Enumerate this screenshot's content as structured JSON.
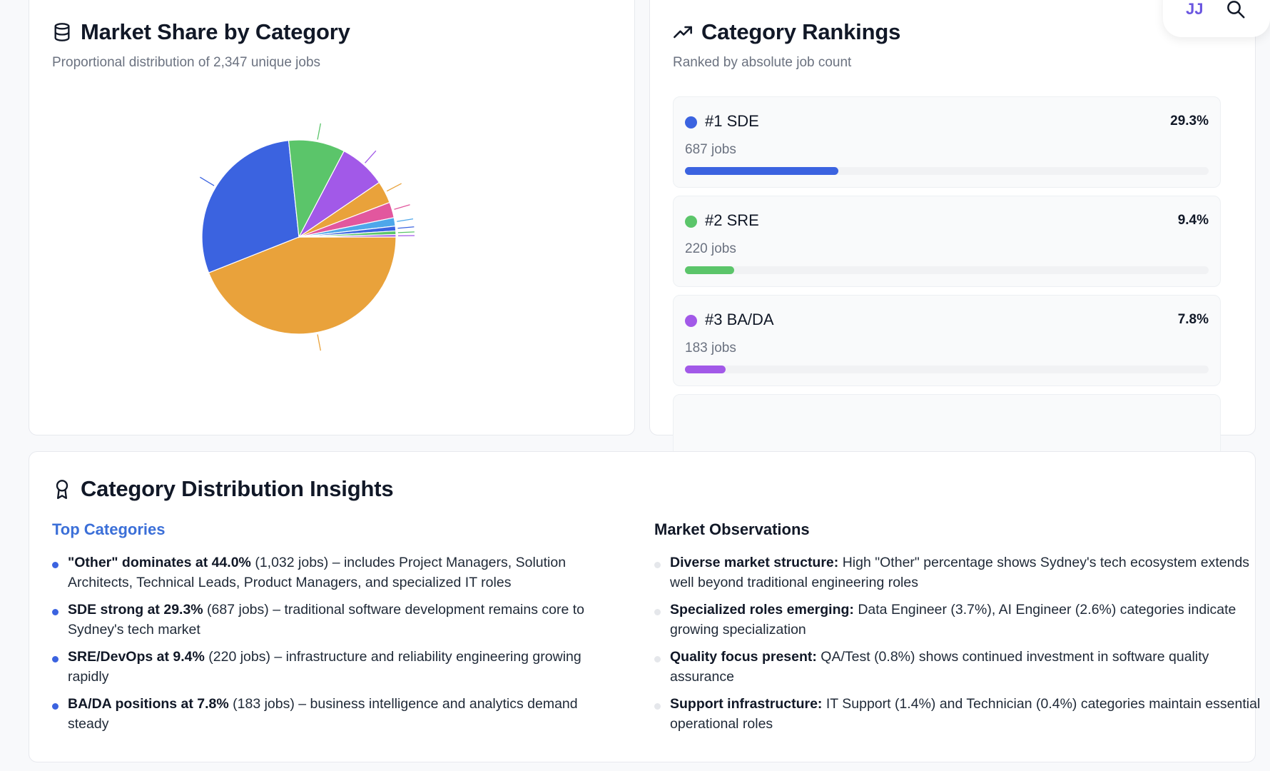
{
  "pie_card": {
    "title": "Market Share by Category",
    "subtitle": "Proportional distribution of 2,347 unique jobs"
  },
  "chart_data": {
    "type": "pie",
    "title": "",
    "slices": [
      {
        "value": 44.0,
        "color": "#e9a23b"
      },
      {
        "value": 29.3,
        "color": "#3b63e0"
      },
      {
        "value": 9.4,
        "color": "#5bc56a"
      },
      {
        "value": 7.8,
        "color": "#a259e8"
      },
      {
        "value": 3.7,
        "color": "#e9a23b"
      },
      {
        "value": 2.6,
        "color": "#e2579e"
      },
      {
        "value": 1.4,
        "color": "#4ea7ea"
      },
      {
        "value": 0.8,
        "color": "#3b63e0"
      },
      {
        "value": 0.6,
        "color": "#5bc56a"
      },
      {
        "value": 0.4,
        "color": "#a259e8"
      }
    ]
  },
  "rank_card": {
    "title": "Category Rankings",
    "subtitle": "Ranked by absolute job count",
    "items": [
      {
        "name": "#1 SDE",
        "pct": "29.3%",
        "jobs": "687 jobs",
        "fill": 29.3,
        "color": "#3b63e0"
      },
      {
        "name": "#2 SRE",
        "pct": "9.4%",
        "jobs": "220 jobs",
        "fill": 9.4,
        "color": "#5bc56a"
      },
      {
        "name": "#3 BA/DA",
        "pct": "7.8%",
        "jobs": "183 jobs",
        "fill": 7.8,
        "color": "#a259e8"
      }
    ]
  },
  "insights": {
    "title": "Category Distribution Insights",
    "left_title": "Top Categories",
    "left_bullet_color": "#3b63e0",
    "left": [
      {
        "bold": "\"Other\" dominates at 44.0%",
        "rest": " (1,032 jobs) – includes Project Managers, Solution Architects, Technical Leads, Product Managers, and specialized IT roles"
      },
      {
        "bold": "SDE strong at 29.3%",
        "rest": " (687 jobs) – traditional software development remains core to Sydney's tech market"
      },
      {
        "bold": "SRE/DevOps at 9.4%",
        "rest": " (220 jobs) – infrastructure and reliability engineering growing rapidly"
      },
      {
        "bold": "BA/DA positions at 7.8%",
        "rest": " (183 jobs) – business intelligence and analytics demand steady"
      }
    ],
    "right_title": "Market Observations",
    "right_bullet_color": "#e5e7eb",
    "right": [
      {
        "bold": "Diverse market structure:",
        "rest": " High \"Other\" percentage shows Sydney's tech ecosystem extends well beyond traditional engineering roles"
      },
      {
        "bold": "Specialized roles emerging:",
        "rest": " Data Engineer (3.7%), AI Engineer (2.6%) categories indicate growing specialization"
      },
      {
        "bold": "Quality focus present:",
        "rest": " QA/Test (0.8%) shows continued investment in software quality assurance"
      },
      {
        "bold": "Support infrastructure:",
        "rest": " IT Support (1.4%) and Technician (0.4%) categories maintain essential operational roles"
      }
    ]
  },
  "user": {
    "initials": "JJ",
    "icon": "search-icon"
  }
}
